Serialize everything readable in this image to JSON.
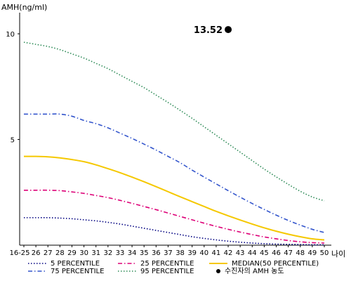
{
  "chart_data": {
    "type": "line",
    "ylabel": "AMH(ng/ml)",
    "xlabel": "나이",
    "ylim": [
      0,
      11
    ],
    "yticks": [
      5,
      10
    ],
    "categories": [
      "16-25",
      "26",
      "27",
      "28",
      "29",
      "30",
      "31",
      "32",
      "33",
      "34",
      "35",
      "36",
      "37",
      "38",
      "39",
      "40",
      "41",
      "42",
      "43",
      "44",
      "45",
      "46",
      "47",
      "48",
      "49",
      "50"
    ],
    "series": [
      {
        "name": "5 PERCENTILE",
        "color": "#000080",
        "dash": "1.5,2.5",
        "values": [
          1.3,
          1.3,
          1.3,
          1.28,
          1.25,
          1.2,
          1.15,
          1.08,
          1.0,
          0.9,
          0.8,
          0.7,
          0.6,
          0.5,
          0.4,
          0.32,
          0.25,
          0.19,
          0.14,
          0.1,
          0.07,
          0.05,
          0.04,
          0.03,
          0.02,
          0.02
        ]
      },
      {
        "name": "25 PERCENTILE",
        "color": "#dd0077",
        "dash": "6,3,1.5,3",
        "values": [
          2.6,
          2.6,
          2.6,
          2.58,
          2.52,
          2.45,
          2.35,
          2.25,
          2.12,
          1.98,
          1.83,
          1.68,
          1.52,
          1.36,
          1.2,
          1.04,
          0.89,
          0.75,
          0.62,
          0.5,
          0.39,
          0.3,
          0.22,
          0.16,
          0.12,
          0.1
        ]
      },
      {
        "name": "MEDIAN(50 PERCENTILE)",
        "color": "#f5c800",
        "dash": "",
        "values": [
          4.2,
          4.2,
          4.18,
          4.13,
          4.05,
          3.95,
          3.8,
          3.62,
          3.43,
          3.22,
          3.0,
          2.77,
          2.53,
          2.29,
          2.06,
          1.83,
          1.6,
          1.39,
          1.19,
          1.0,
          0.82,
          0.66,
          0.52,
          0.4,
          0.3,
          0.25
        ]
      },
      {
        "name": "75 PERCENTILE",
        "color": "#3355cc",
        "dash": "6,3,1.5,3",
        "values": [
          6.2,
          6.2,
          6.2,
          6.2,
          6.1,
          5.9,
          5.75,
          5.55,
          5.3,
          5.05,
          4.78,
          4.5,
          4.2,
          3.9,
          3.55,
          3.22,
          2.9,
          2.58,
          2.27,
          1.97,
          1.69,
          1.42,
          1.17,
          0.95,
          0.75,
          0.6
        ]
      },
      {
        "name": "95 PERCENTILE",
        "color": "#2e8b57",
        "dash": "1.5,2.5",
        "values": [
          9.6,
          9.5,
          9.4,
          9.25,
          9.05,
          8.85,
          8.6,
          8.35,
          8.05,
          7.75,
          7.45,
          7.1,
          6.75,
          6.38,
          6.0,
          5.6,
          5.2,
          4.8,
          4.4,
          4.0,
          3.6,
          3.23,
          2.88,
          2.55,
          2.28,
          2.1
        ]
      }
    ],
    "marker": {
      "name": "수진자의 AMH 농도",
      "x": "42",
      "y": 10.2,
      "label": "13.52",
      "color": "#000000"
    },
    "grid": false,
    "legend_position": "bottom"
  }
}
